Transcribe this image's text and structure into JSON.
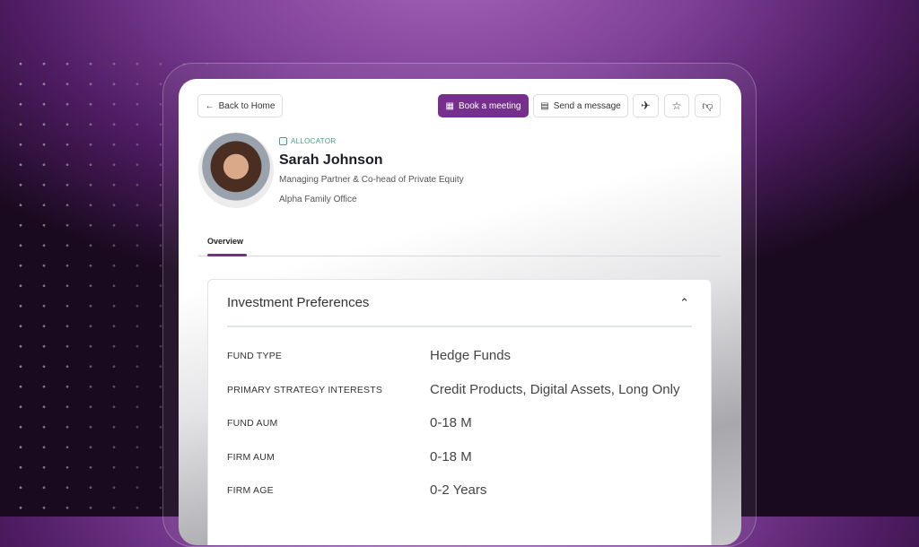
{
  "header": {
    "back_label": "Back to Home",
    "book_label": "Book a meeting",
    "message_label": "Send a message",
    "accent": "#772f8d"
  },
  "profile": {
    "badge": "ALLOCATOR",
    "name": "Sarah Johnson",
    "title": "Managing Partner & Co-head of Private Equity",
    "organization": "Alpha Family Office"
  },
  "tabs": [
    {
      "label": "Overview",
      "active": true
    }
  ],
  "section": {
    "title": "Investment Preferences",
    "rows": [
      {
        "label": "FUND TYPE",
        "value": "Hedge Funds"
      },
      {
        "label": "PRIMARY STRATEGY INTERESTS",
        "value": "Credit Products, Digital Assets, Long Only"
      },
      {
        "label": "FUND AUM",
        "value": "0-18 M"
      },
      {
        "label": "FIRM AUM",
        "value": "0-18 M"
      },
      {
        "label": "FIRM AGE",
        "value": "0-2 Years"
      }
    ]
  }
}
